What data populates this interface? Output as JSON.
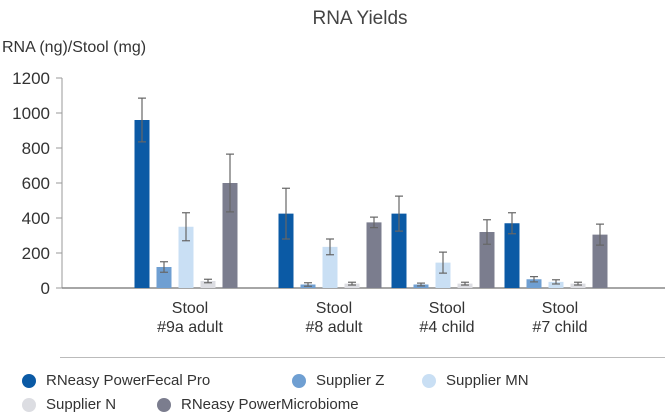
{
  "chart_data": {
    "type": "bar",
    "title": "RNA Yields",
    "ylabel": "RNA (ng)/Stool (mg)",
    "xlabel": "",
    "ylim": [
      0,
      1200
    ],
    "yticks": [
      "0",
      "200",
      "400",
      "600",
      "800",
      "1000",
      "1200"
    ],
    "grid": false,
    "legend_placement": "bottom",
    "categories": [
      [
        "Stool",
        "#9a adult"
      ],
      [
        "Stool",
        "#8 adult"
      ],
      [
        "Stool",
        "#4 child"
      ],
      [
        "Stool",
        "#7 child"
      ]
    ],
    "series": [
      {
        "name": "RNeasy PowerFecal Pro",
        "color": "#0b5aa5",
        "values": [
          960,
          425,
          425,
          370
        ],
        "errors": [
          125,
          145,
          100,
          60
        ]
      },
      {
        "name": "Supplier Z",
        "color": "#6f9fd2",
        "values": [
          120,
          20,
          20,
          50
        ],
        "errors": [
          30,
          10,
          8,
          15
        ]
      },
      {
        "name": "Supplier MN",
        "color": "#c9dff4",
        "values": [
          350,
          235,
          145,
          35
        ],
        "errors": [
          80,
          45,
          60,
          12
        ]
      },
      {
        "name": "Supplier N",
        "color": "#dcdde2",
        "values": [
          40,
          25,
          25,
          25
        ],
        "errors": [
          10,
          8,
          8,
          8
        ]
      },
      {
        "name": "RNeasy PowerMicrobiome",
        "color": "#7b7d8e",
        "values": [
          600,
          375,
          320,
          305
        ],
        "errors": [
          165,
          30,
          70,
          60
        ]
      }
    ]
  }
}
